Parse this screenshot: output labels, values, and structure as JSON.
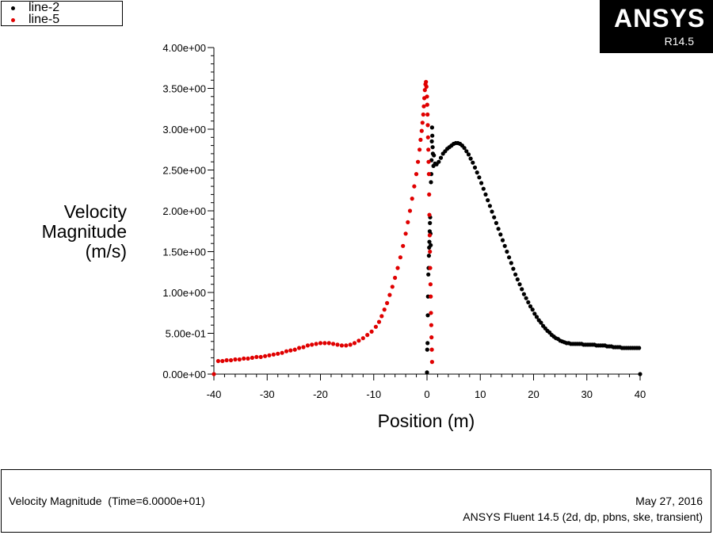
{
  "legend": [
    {
      "label": "line-2",
      "color": "#000000"
    },
    {
      "label": "line-5",
      "color": "#e00000"
    }
  ],
  "logo": {
    "name": "ANSYS",
    "version": "R14.5"
  },
  "footer": {
    "title": "Velocity Magnitude  (Time=6.0000e+01)",
    "date": "May 27, 2016",
    "software": "ANSYS Fluent 14.5 (2d, dp, pbns, ske, transient)"
  },
  "chart_data": {
    "type": "scatter",
    "xlabel": "Position (m)",
    "ylabel": [
      "Velocity",
      "Magnitude",
      "(m/s)"
    ],
    "xlim": [
      -40,
      40
    ],
    "ylim": [
      0,
      4
    ],
    "xticks": [
      "-40",
      "-30",
      "-20",
      "-10",
      "0",
      "10",
      "20",
      "30",
      "40"
    ],
    "yticks": [
      "0.00e+00",
      "5.00e-01",
      "1.00e+00",
      "1.50e+00",
      "2.00e+00",
      "2.50e+00",
      "3.00e+00",
      "3.50e+00",
      "4.00e+00"
    ],
    "grid": false,
    "legend_position": "top-left",
    "series": [
      {
        "name": "line-2",
        "color": "#000000",
        "x": [
          0.0,
          0.05,
          0.1,
          0.15,
          0.2,
          0.25,
          0.3,
          0.35,
          0.4,
          0.45,
          0.5,
          0.55,
          0.6,
          0.65,
          0.7,
          0.75,
          0.8,
          0.85,
          0.9,
          0.95,
          1.0,
          1.05,
          1.1,
          1.2,
          1.3,
          1.5,
          1.8,
          2.2,
          2.6,
          3.0,
          3.4,
          3.8,
          4.2,
          4.6,
          5.0,
          5.4,
          5.8,
          6.2,
          6.6,
          7.0,
          7.4,
          7.8,
          8.2,
          8.6,
          9.0,
          9.4,
          9.8,
          10.2,
          10.6,
          11.0,
          11.4,
          11.8,
          12.2,
          12.6,
          13.0,
          13.4,
          13.8,
          14.2,
          14.6,
          15.0,
          15.4,
          15.8,
          16.2,
          16.6,
          17.0,
          17.4,
          17.8,
          18.2,
          18.6,
          19.0,
          19.4,
          19.8,
          20.2,
          20.6,
          21.0,
          21.4,
          21.8,
          22.2,
          22.6,
          23.0,
          23.4,
          23.8,
          24.2,
          24.6,
          25.0,
          25.4,
          25.8,
          26.2,
          26.6,
          27.0,
          27.4,
          27.8,
          28.2,
          28.6,
          29.0,
          29.4,
          29.8,
          30.2,
          30.6,
          31.0,
          31.4,
          31.8,
          32.2,
          32.6,
          33.0,
          33.4,
          33.8,
          34.2,
          34.6,
          35.0,
          35.4,
          35.8,
          36.2,
          36.6,
          37.0,
          37.4,
          37.8,
          38.2,
          38.6,
          39.0,
          39.4,
          39.8,
          40.0
        ],
        "y": [
          0.02,
          0.3,
          0.38,
          0.72,
          0.95,
          1.22,
          1.3,
          1.45,
          1.55,
          1.62,
          1.75,
          1.85,
          1.92,
          1.72,
          1.58,
          2.35,
          2.45,
          2.62,
          2.85,
          3.02,
          2.92,
          2.78,
          2.7,
          2.55,
          2.68,
          2.58,
          2.57,
          2.6,
          2.65,
          2.7,
          2.73,
          2.76,
          2.78,
          2.8,
          2.82,
          2.83,
          2.83,
          2.82,
          2.8,
          2.77,
          2.73,
          2.69,
          2.64,
          2.59,
          2.53,
          2.47,
          2.41,
          2.34,
          2.27,
          2.2,
          2.13,
          2.06,
          1.99,
          1.92,
          1.85,
          1.78,
          1.71,
          1.64,
          1.57,
          1.5,
          1.43,
          1.36,
          1.29,
          1.22,
          1.16,
          1.1,
          1.04,
          0.98,
          0.93,
          0.88,
          0.83,
          0.79,
          0.74,
          0.7,
          0.66,
          0.63,
          0.59,
          0.56,
          0.53,
          0.51,
          0.48,
          0.46,
          0.44,
          0.43,
          0.41,
          0.4,
          0.39,
          0.38,
          0.38,
          0.37,
          0.37,
          0.37,
          0.37,
          0.37,
          0.37,
          0.36,
          0.36,
          0.36,
          0.36,
          0.36,
          0.36,
          0.35,
          0.35,
          0.35,
          0.35,
          0.35,
          0.34,
          0.34,
          0.34,
          0.33,
          0.33,
          0.33,
          0.33,
          0.32,
          0.32,
          0.32,
          0.32,
          0.32,
          0.32,
          0.32,
          0.32,
          0.32,
          0.0
        ]
      },
      {
        "name": "line-5",
        "color": "#e00000",
        "x": [
          -40.0,
          -39.2,
          -38.4,
          -37.6,
          -36.8,
          -36.0,
          -35.2,
          -34.4,
          -33.6,
          -32.8,
          -32.0,
          -31.2,
          -30.4,
          -29.6,
          -28.8,
          -28.0,
          -27.2,
          -26.4,
          -25.6,
          -24.8,
          -24.0,
          -23.2,
          -22.4,
          -21.6,
          -20.8,
          -20.0,
          -19.2,
          -18.4,
          -17.6,
          -16.8,
          -16.0,
          -15.2,
          -14.4,
          -13.6,
          -12.8,
          -12.0,
          -11.2,
          -10.4,
          -9.6,
          -9.0,
          -8.5,
          -8.0,
          -7.5,
          -7.0,
          -6.5,
          -6.0,
          -5.5,
          -5.0,
          -4.5,
          -4.0,
          -3.6,
          -3.2,
          -2.8,
          -2.4,
          -2.0,
          -1.7,
          -1.4,
          -1.2,
          -1.0,
          -0.85,
          -0.7,
          -0.6,
          -0.5,
          -0.4,
          -0.3,
          -0.2,
          -0.1,
          0.0,
          0.05,
          0.1,
          0.15,
          0.2,
          0.25,
          0.3,
          0.35,
          0.4,
          0.45,
          0.5,
          0.55,
          0.6,
          0.65,
          0.7,
          0.75,
          0.8,
          0.85,
          0.9,
          0.95
        ],
        "y": [
          0.0,
          0.16,
          0.16,
          0.17,
          0.17,
          0.18,
          0.18,
          0.19,
          0.19,
          0.2,
          0.21,
          0.21,
          0.22,
          0.23,
          0.24,
          0.25,
          0.26,
          0.28,
          0.29,
          0.3,
          0.32,
          0.33,
          0.35,
          0.36,
          0.37,
          0.38,
          0.38,
          0.38,
          0.37,
          0.36,
          0.35,
          0.35,
          0.36,
          0.38,
          0.41,
          0.44,
          0.48,
          0.52,
          0.58,
          0.64,
          0.71,
          0.79,
          0.87,
          0.97,
          1.07,
          1.18,
          1.3,
          1.43,
          1.57,
          1.72,
          1.86,
          2.0,
          2.15,
          2.3,
          2.45,
          2.6,
          2.75,
          2.87,
          2.98,
          3.08,
          3.18,
          3.28,
          3.38,
          3.48,
          3.55,
          3.58,
          3.52,
          3.4,
          3.3,
          3.18,
          3.05,
          2.9,
          2.75,
          2.6,
          2.45,
          2.2,
          1.95,
          1.7,
          1.5,
          1.3,
          1.1,
          0.95,
          0.75,
          0.6,
          0.45,
          0.3,
          0.15
        ]
      }
    ]
  }
}
